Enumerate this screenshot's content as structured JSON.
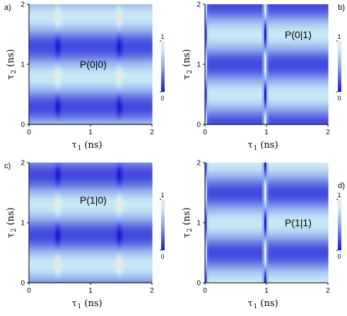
{
  "colors": {
    "low": "#1a14d8",
    "mid": "#8ea8ec",
    "high": "#cfeef6",
    "peak": "#f2e6d2"
  },
  "chart_data": [
    {
      "type": "heatmap",
      "panel_letter": "a)",
      "label": "P(0|0)",
      "xlabel": "τ",
      "xlabel_sub": "1",
      "xlabel_unit": "(ns)",
      "ylabel": "τ",
      "ylabel_sub": "2",
      "ylabel_unit": "(ns)",
      "xlim": [
        0,
        2
      ],
      "ylim": [
        0,
        2
      ],
      "x_ticks": [
        "0",
        "1",
        "2"
      ],
      "y_ticks": [
        "0",
        "1",
        "2"
      ],
      "colorbar": {
        "min_label": "0",
        "max_label": "1"
      },
      "pattern": {
        "ridge_tau1": [
          0.47,
          1.47
        ],
        "x_sharp": true,
        "y_period": 1.0,
        "y_phase": 0.2,
        "y_sharp": false,
        "ridge_sign": 1
      }
    },
    {
      "type": "heatmap",
      "panel_letter": "b)",
      "label": "P(0|1)",
      "xlabel": "τ",
      "xlabel_sub": "1",
      "xlabel_unit": "(ns)",
      "ylabel": "τ",
      "ylabel_sub": "2",
      "ylabel_unit": "(ns)",
      "xlim": [
        0,
        2
      ],
      "ylim": [
        0,
        2
      ],
      "x_ticks": [
        "0",
        "1",
        "2"
      ],
      "y_ticks": [
        "0",
        "1",
        "2"
      ],
      "colorbar": {
        "min_label": "0",
        "max_label": "1"
      },
      "pattern": {
        "ridge_tau1": [
          0.0,
          0.98
        ],
        "x_sharp": false,
        "y_period": 1.0,
        "y_phase": 0.5,
        "y_sharp": false,
        "ridge_sign": -1
      }
    },
    {
      "type": "heatmap",
      "panel_letter": "c)",
      "label": "P(1|0)",
      "xlabel": "τ",
      "xlabel_sub": "1",
      "xlabel_unit": "(ns)",
      "ylabel": "τ",
      "ylabel_sub": "2",
      "ylabel_unit": "(ns)",
      "xlim": [
        0,
        2
      ],
      "ylim": [
        0,
        2
      ],
      "x_ticks": [
        "0",
        "1",
        "2"
      ],
      "y_ticks": [
        "0",
        "1",
        "2"
      ],
      "colorbar": {
        "min_label": "0",
        "max_label": "1"
      },
      "pattern": {
        "ridge_tau1": [
          0.47,
          1.47
        ],
        "x_sharp": true,
        "y_period": 1.0,
        "y_phase": 0.7,
        "y_sharp": false,
        "ridge_sign": 1
      }
    },
    {
      "type": "heatmap",
      "panel_letter": "d)",
      "label": "P(1|1)",
      "xlabel": "τ",
      "xlabel_sub": "1",
      "xlabel_unit": "(ns)",
      "ylabel": "τ",
      "ylabel_sub": "2",
      "ylabel_unit": "(ns)",
      "xlim": [
        0,
        2
      ],
      "ylim": [
        0,
        2
      ],
      "x_ticks": [
        "0",
        "1",
        "2"
      ],
      "y_ticks": [
        "0",
        "1",
        "2"
      ],
      "colorbar": {
        "min_label": "0",
        "max_label": "1"
      },
      "pattern": {
        "ridge_tau1": [
          0.0,
          0.98
        ],
        "x_sharp": false,
        "y_period": 1.0,
        "y_phase": 0.0,
        "y_sharp": false,
        "ridge_sign": -1
      }
    }
  ]
}
